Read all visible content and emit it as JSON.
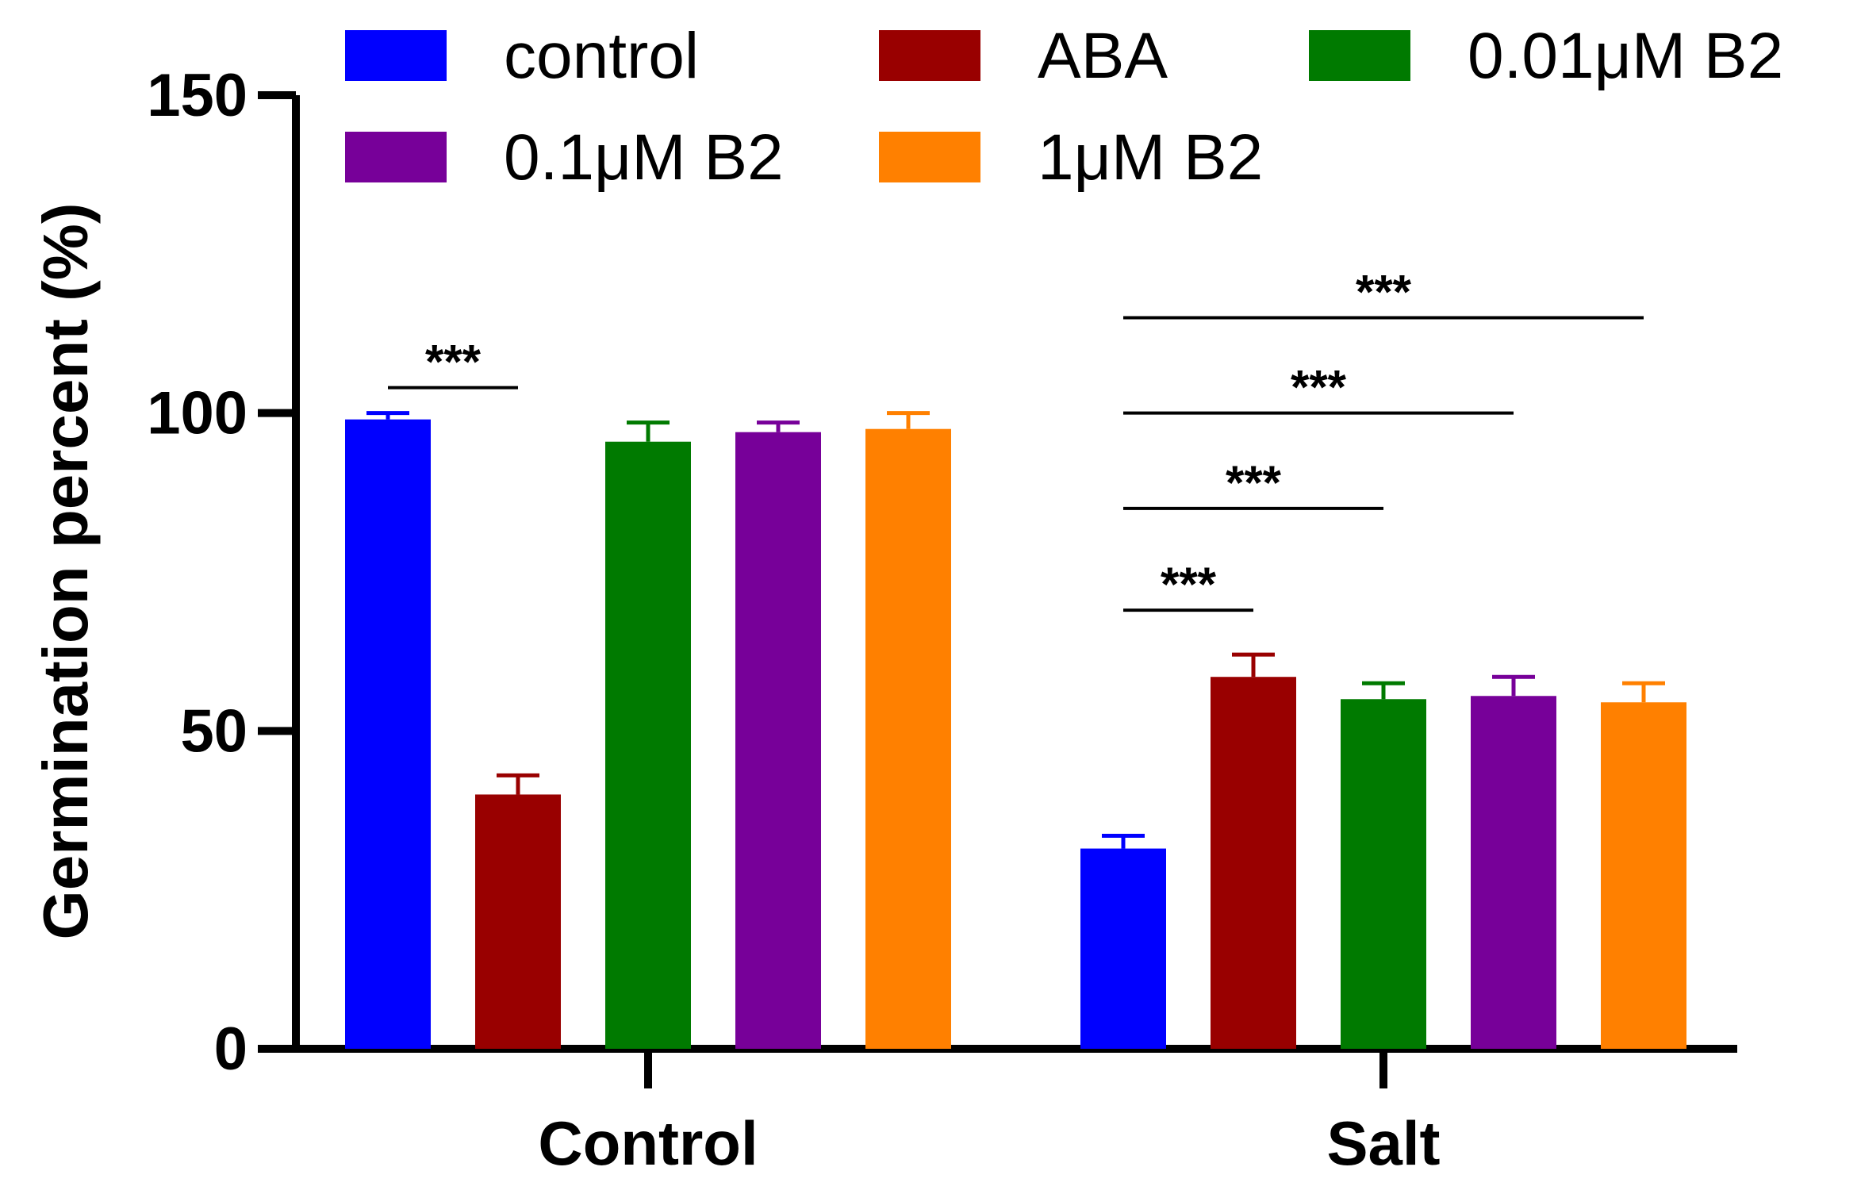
{
  "chart_data": {
    "type": "bar",
    "ylabel": "Germination percent (%)",
    "xlabel": "",
    "ylim": [
      0,
      150
    ],
    "yticks": [
      0,
      50,
      100,
      150
    ],
    "categories": [
      "Control",
      "Salt"
    ],
    "grid": false,
    "legend_position": "top",
    "series": [
      {
        "name": "control",
        "color": "#0000ff",
        "values": [
          99,
          31.5
        ],
        "errors": [
          1,
          2
        ]
      },
      {
        "name": "ABA",
        "color": "#990000",
        "values": [
          40,
          58.5
        ],
        "errors": [
          3,
          3.5
        ]
      },
      {
        "name": "0.01μM B2",
        "color": "#007a00",
        "values": [
          95.5,
          55
        ],
        "errors": [
          3,
          2.5
        ]
      },
      {
        "name": "0.1μM B2",
        "color": "#770099",
        "values": [
          97,
          55.5
        ],
        "errors": [
          1.5,
          3
        ]
      },
      {
        "name": "1μM B2",
        "color": "#ff8000",
        "values": [
          97.5,
          54.5
        ],
        "errors": [
          2.5,
          3
        ]
      }
    ],
    "annotations": [
      {
        "label": "***",
        "category": 0,
        "from_series": 0,
        "to_series": 1,
        "y": 104
      },
      {
        "label": "***",
        "category": 1,
        "from_series": 0,
        "to_series": 1,
        "y": 69
      },
      {
        "label": "***",
        "category": 1,
        "from_series": 0,
        "to_series": 2,
        "y": 85
      },
      {
        "label": "***",
        "category": 1,
        "from_series": 0,
        "to_series": 3,
        "y": 100
      },
      {
        "label": "***",
        "category": 1,
        "from_series": 0,
        "to_series": 4,
        "y": 115
      }
    ]
  }
}
